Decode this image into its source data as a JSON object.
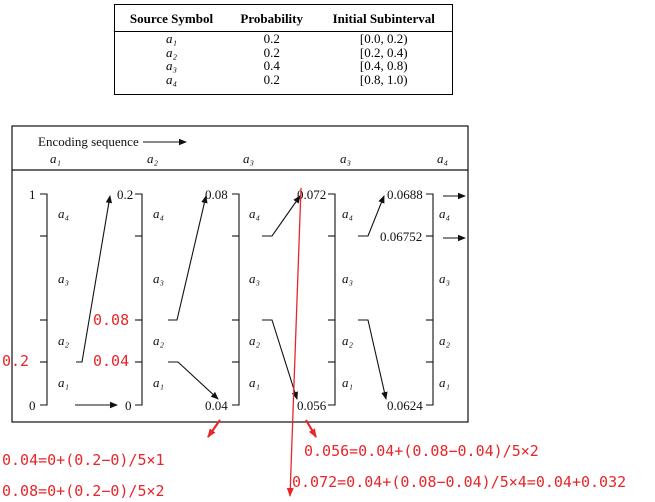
{
  "table": {
    "headers": [
      "Source Symbol",
      "Probability",
      "Initial Subinterval"
    ],
    "rows": [
      [
        "a1",
        "0.2",
        "[0.0, 0.2)"
      ],
      [
        "a2",
        "0.2",
        "[0.2, 0.4)"
      ],
      [
        "a3",
        "0.4",
        "[0.4, 0.8)"
      ],
      [
        "a4",
        "0.2",
        "[0.8, 1.0)"
      ]
    ]
  },
  "diagram": {
    "encoding_label": "Encoding sequence",
    "sequence": [
      "a1",
      "a2",
      "a3",
      "a3",
      "a4"
    ],
    "symbols": [
      "a1",
      "a2",
      "a3",
      "a4"
    ],
    "top_values": [
      "1",
      "0.2",
      "0.08",
      "0.072",
      "0.0688"
    ],
    "bottom_values": [
      "0",
      "0",
      "0.04",
      "0.056",
      "0.0624"
    ],
    "extra_value": "0.06752"
  },
  "annotations": {
    "left_value": "0.2",
    "mid_value_1": "0.08",
    "mid_value_2": "0.04",
    "eq1": "0.04=0+(0.2−0)/5×1",
    "eq2": "0.08=0+(0.2−0)/5×2",
    "eq3": "0.056=0.04+(0.08−0.04)/5×2",
    "eq4": "0.072=0.04+(0.08−0.04)/5×4=0.04+0.032"
  },
  "colors": {
    "annotation": "#e8262a",
    "line": "#111111"
  }
}
